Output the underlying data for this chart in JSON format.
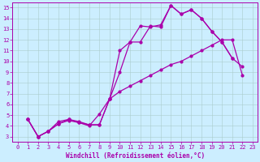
{
  "background_color": "#cceeff",
  "line_color": "#aa00aa",
  "xlim": [
    -0.5,
    23.5
  ],
  "ylim": [
    2.5,
    15.5
  ],
  "xticks": [
    0,
    1,
    2,
    3,
    4,
    5,
    6,
    7,
    8,
    9,
    10,
    11,
    12,
    13,
    14,
    15,
    16,
    17,
    18,
    19,
    20,
    21,
    22,
    23
  ],
  "yticks": [
    3,
    4,
    5,
    6,
    7,
    8,
    9,
    10,
    11,
    12,
    13,
    14,
    15
  ],
  "xlabel": "Windchill (Refroidissement éolien,°C)",
  "line1_x": [
    1,
    2,
    3,
    4,
    5,
    6,
    7,
    8,
    9,
    10,
    11,
    12,
    13,
    14,
    15,
    16,
    17,
    18,
    19,
    20,
    21
  ],
  "line1_y": [
    4.6,
    3.0,
    3.5,
    4.2,
    4.6,
    4.3,
    4.1,
    4.1,
    6.5,
    11.0,
    11.8,
    13.3,
    13.2,
    13.4,
    15.2,
    14.4,
    14.8,
    14.0,
    12.8,
    11.8,
    10.3
  ],
  "line2_x": [
    1,
    2,
    3,
    4,
    5,
    6,
    7,
    8,
    9,
    10,
    11,
    12,
    13,
    14,
    15,
    16,
    17,
    18,
    19,
    20,
    21,
    22
  ],
  "line2_y": [
    4.6,
    3.0,
    3.5,
    4.4,
    4.6,
    4.4,
    4.1,
    4.1,
    6.5,
    9.0,
    11.8,
    11.8,
    13.3,
    13.2,
    15.2,
    14.4,
    14.8,
    14.0,
    12.8,
    11.8,
    10.3,
    9.5
  ],
  "line3_x": [
    1,
    2,
    3,
    4,
    5,
    6,
    7,
    8,
    9,
    10,
    11,
    12,
    13,
    14,
    15,
    16,
    17,
    18,
    19,
    20,
    21,
    22
  ],
  "line3_y": [
    4.6,
    3.0,
    3.5,
    4.2,
    4.5,
    4.3,
    4.0,
    5.1,
    6.5,
    7.2,
    7.7,
    8.2,
    8.7,
    9.2,
    9.7,
    10.0,
    10.5,
    11.0,
    11.5,
    12.0,
    12.0,
    8.7
  ],
  "markersize": 2.0,
  "linewidth": 0.9,
  "tick_fontsize": 5,
  "xlabel_fontsize": 5.5,
  "grid_color": "#aacccc"
}
